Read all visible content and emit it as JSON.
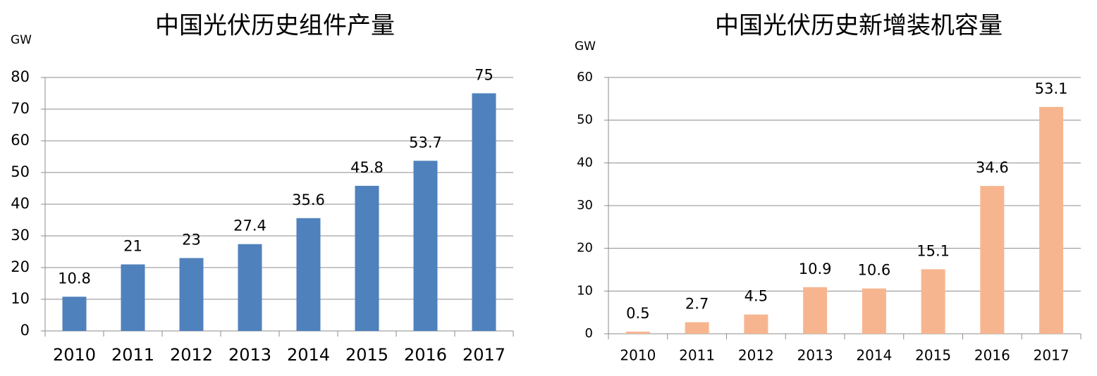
{
  "chart_data": [
    {
      "type": "bar",
      "title": "中国光伏历史组件产量",
      "y_label": "GW",
      "categories": [
        "2010",
        "2011",
        "2012",
        "2013",
        "2014",
        "2015",
        "2016",
        "2017"
      ],
      "values": [
        10.8,
        21,
        23,
        27.4,
        35.6,
        45.8,
        53.7,
        75
      ],
      "color": "#4f81bd",
      "ylim": [
        0,
        80
      ],
      "yticks": [
        0,
        10,
        20,
        30,
        40,
        50,
        60,
        70,
        80
      ],
      "grid": true
    },
    {
      "type": "bar",
      "title": "中国光伏历史新增装机容量",
      "y_label": "GW",
      "categories": [
        "2010",
        "2011",
        "2012",
        "2013",
        "2014",
        "2015",
        "2016",
        "2017"
      ],
      "values": [
        0.5,
        2.7,
        4.5,
        10.9,
        10.6,
        15.1,
        34.6,
        53.1
      ],
      "color": "#f7b58f",
      "ylim": [
        0,
        60
      ],
      "yticks": [
        0,
        10,
        20,
        30,
        40,
        50,
        60
      ],
      "grid": true
    }
  ]
}
